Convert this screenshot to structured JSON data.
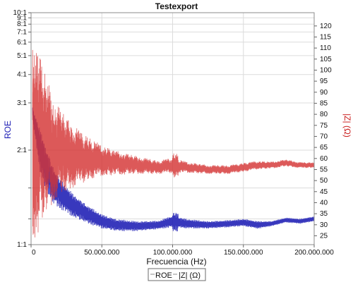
{
  "chart_data": {
    "type": "line",
    "title": "Testexport",
    "xlabel": "Frecuencia (Hz)",
    "ylabel_left": "ROE",
    "ylabel_right": "|Z| (Ω)",
    "xlim": [
      0,
      200000000
    ],
    "ylim_left": [
      1,
      10
    ],
    "left_axis_scale": "vswr",
    "ylim_right": [
      21,
      126
    ],
    "x_ticks": [
      0,
      50000000,
      100000000,
      150000000,
      200000000
    ],
    "x_tick_labels": [
      "0",
      "50.000.000",
      "100.000.000",
      "150.000.000",
      "200.000.000"
    ],
    "left_ticks": [
      1,
      1.2,
      1.5,
      2,
      3,
      4,
      5,
      6,
      7,
      8,
      9,
      10
    ],
    "left_tick_labels": [
      "1:1",
      "",
      "",
      "2:1",
      "3:1",
      "4:1",
      "5:1",
      "6:1",
      "7:1",
      "8:1",
      "9:1",
      "10:1"
    ],
    "right_ticks": [
      25,
      30,
      35,
      40,
      45,
      50,
      55,
      60,
      65,
      70,
      75,
      80,
      85,
      90,
      95,
      100,
      105,
      110,
      115,
      120
    ],
    "grid": true,
    "legend_position": "bottom-center",
    "series": [
      {
        "name": "ROE",
        "axis": "left",
        "color": "#1c1cb4",
        "x": [
          1000000,
          2000000,
          4000000,
          6000000,
          10000000,
          15000000,
          20000000,
          30000000,
          40000000,
          50000000,
          60000000,
          75000000,
          90000000,
          100000000,
          110000000,
          125000000,
          140000000,
          150000000,
          160000000,
          170000000,
          180000000,
          190000000,
          200000000
        ],
        "center": [
          2.8,
          2.55,
          2.3,
          2.05,
          1.78,
          1.56,
          1.45,
          1.32,
          1.24,
          1.18,
          1.15,
          1.14,
          1.15,
          1.18,
          1.16,
          1.15,
          1.16,
          1.17,
          1.15,
          1.16,
          1.19,
          1.18,
          1.2
        ],
        "amplitude": [
          0.1,
          0.2,
          0.3,
          0.35,
          0.3,
          0.22,
          0.16,
          0.11,
          0.08,
          0.06,
          0.05,
          0.04,
          0.035,
          0.05,
          0.04,
          0.03,
          0.03,
          0.03,
          0.03,
          0.02,
          0.02,
          0.02,
          0.02
        ]
      },
      {
        "name": "|Z| (Ω)",
        "axis": "right",
        "color": "#d43434",
        "x": [
          1000000,
          2000000,
          4000000,
          6000000,
          10000000,
          15000000,
          20000000,
          30000000,
          40000000,
          50000000,
          60000000,
          75000000,
          90000000,
          100000000,
          110000000,
          125000000,
          140000000,
          150000000,
          160000000,
          170000000,
          180000000,
          190000000,
          200000000
        ],
        "center": [
          70,
          72,
          70,
          68,
          66,
          64,
          63,
          61,
          60,
          59,
          58,
          57,
          56,
          57,
          56,
          55,
          55,
          56,
          57,
          57,
          58,
          57,
          57
        ],
        "amplitude": [
          50,
          48,
          46,
          40,
          32,
          25,
          20,
          14,
          10,
          7,
          5.5,
          4,
          3,
          3.5,
          2.5,
          2,
          2,
          2,
          1.8,
          1.5,
          1.5,
          1.3,
          1.2
        ]
      }
    ]
  }
}
